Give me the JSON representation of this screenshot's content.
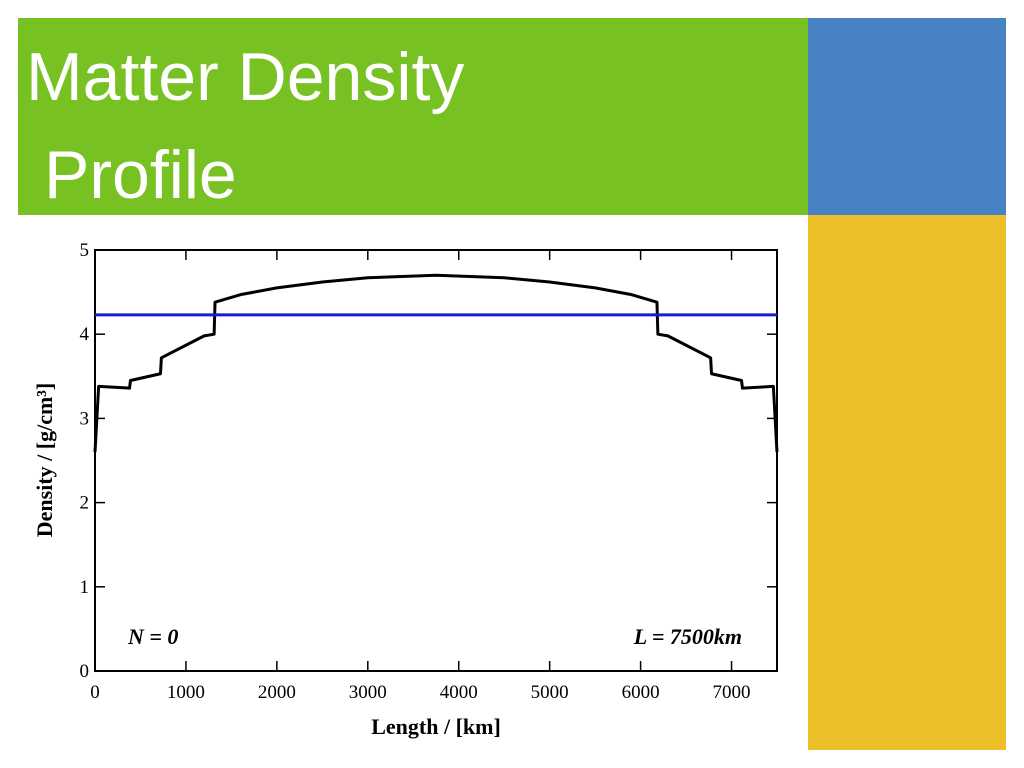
{
  "slide": {
    "title_lines": [
      "Matter Density",
      "Profile"
    ]
  },
  "chart_data": {
    "type": "line",
    "xlabel": "Length / [km]",
    "ylabel": "Density / [g/cm³]",
    "annotations": [
      "N = 0",
      "L = 7500km"
    ],
    "xlim": [
      0,
      7500
    ],
    "ylim": [
      0,
      5
    ],
    "xticks": [
      0,
      1000,
      2000,
      3000,
      4000,
      5000,
      6000,
      7000
    ],
    "yticks": [
      0,
      1,
      2,
      3,
      4,
      5
    ],
    "series": [
      {
        "color": "#000000",
        "x": [
          0,
          40,
          380,
          390,
          720,
          730,
          1200,
          1310,
          1320,
          1600,
          2000,
          2500,
          3000,
          3750,
          4500,
          5000,
          5500,
          5900,
          6180,
          6190,
          6300,
          6770,
          6780,
          7110,
          7120,
          7460,
          7500
        ],
        "values": [
          2.6,
          3.38,
          3.36,
          3.45,
          3.53,
          3.72,
          3.98,
          4.0,
          4.38,
          4.47,
          4.55,
          4.62,
          4.67,
          4.7,
          4.67,
          4.62,
          4.55,
          4.47,
          4.38,
          4.0,
          3.98,
          3.72,
          3.53,
          3.45,
          3.36,
          3.38,
          2.6
        ]
      },
      {
        "color": "#1a1ad6",
        "x": [
          0,
          7500
        ],
        "values": [
          4.23,
          4.23
        ]
      }
    ]
  }
}
